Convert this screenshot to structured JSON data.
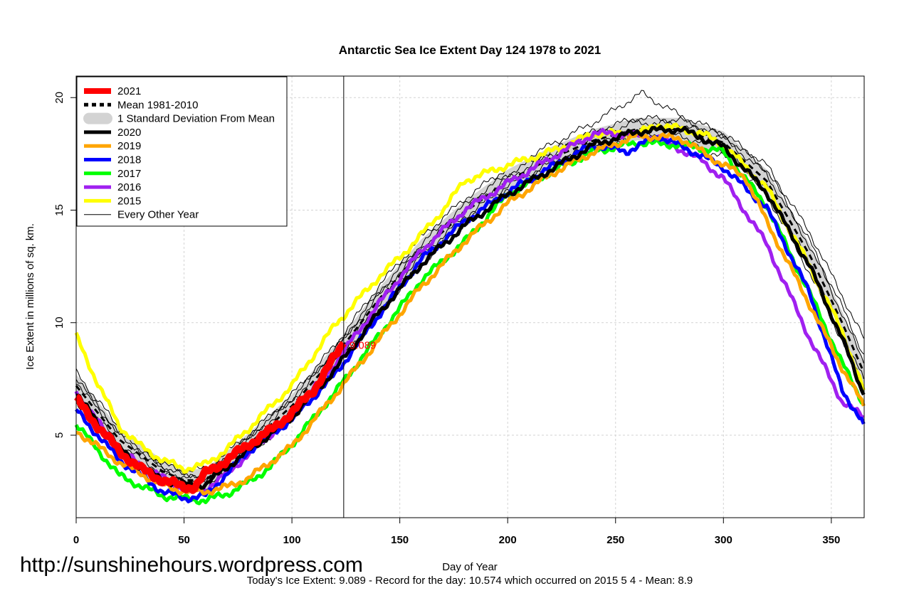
{
  "chart_data": {
    "type": "line",
    "title": "Antarctic Sea Ice Extent Day 124 1978 to 2021",
    "xlabel": "Day of Year",
    "ylabel": "Ice Extent in millions of sq. km.",
    "xlim": [
      0,
      365
    ],
    "ylim": [
      1.3,
      21
    ],
    "xticks": [
      0,
      50,
      100,
      150,
      200,
      250,
      300,
      350
    ],
    "yticks": [
      5,
      10,
      15,
      20
    ],
    "grid": true,
    "legend_position": "top-left",
    "marker_day": 124,
    "annotation": "9.089",
    "footer": "Today's Ice Extent: 9.089  - Record for the day: 10.574 which occurred on 2015 5 4  - Mean: 8.9",
    "watermark": "http://sunshinehours.wordpress.com",
    "legend": [
      {
        "label": "2021",
        "color": "#ff0000",
        "style": "thick"
      },
      {
        "label": "Mean 1981-2010",
        "color": "#000000",
        "style": "dashed"
      },
      {
        "label": "1 Standard Deviation From Mean",
        "color": "#d3d3d3",
        "style": "band"
      },
      {
        "label": "2020",
        "color": "#000000",
        "style": "thick"
      },
      {
        "label": "2019",
        "color": "#ffa500",
        "style": "thick"
      },
      {
        "label": "2018",
        "color": "#0000ff",
        "style": "thick"
      },
      {
        "label": "2017",
        "color": "#00ff00",
        "style": "thick"
      },
      {
        "label": "2016",
        "color": "#a020f0",
        "style": "thick"
      },
      {
        "label": "2015",
        "color": "#ffff00",
        "style": "thick"
      },
      {
        "label": "Every Other Year",
        "color": "#000000",
        "style": "thin"
      }
    ],
    "mean": {
      "x": [
        0,
        20,
        40,
        50,
        60,
        80,
        100,
        120,
        140,
        160,
        180,
        200,
        220,
        240,
        260,
        280,
        300,
        320,
        340,
        355,
        365
      ],
      "y": [
        7.2,
        4.8,
        3.4,
        3.0,
        3.0,
        4.6,
        6.3,
        8.5,
        11.0,
        13.2,
        14.9,
        16.3,
        17.3,
        18.1,
        18.6,
        18.6,
        18.0,
        16.3,
        13.0,
        10.0,
        7.8
      ],
      "sd": 0.5
    },
    "other_years": [
      {
        "x": [
          0,
          20,
          40,
          50,
          60,
          80,
          100,
          120,
          140,
          160,
          180,
          200,
          220,
          240,
          262,
          280,
          300,
          320,
          340,
          355,
          365
        ],
        "y": [
          7.8,
          5.3,
          3.7,
          3.4,
          3.5,
          5.0,
          6.8,
          9.0,
          11.6,
          13.8,
          15.5,
          16.9,
          17.9,
          18.9,
          20.2,
          19.2,
          18.4,
          17.0,
          14.0,
          11.2,
          9.3
        ]
      },
      {
        "x": [
          0,
          20,
          40,
          50,
          60,
          80,
          100,
          120,
          140,
          160,
          180,
          200,
          220,
          240,
          260,
          280,
          300,
          320,
          340,
          355,
          365
        ],
        "y": [
          6.5,
          4.3,
          3.1,
          2.8,
          2.7,
          4.1,
          5.8,
          8.0,
          10.4,
          12.6,
          14.4,
          15.8,
          16.9,
          17.8,
          18.3,
          18.0,
          17.4,
          15.7,
          12.2,
          9.2,
          7.2
        ]
      },
      {
        "x": [
          0,
          20,
          40,
          50,
          60,
          80,
          100,
          120,
          140,
          160,
          180,
          200,
          220,
          240,
          260,
          280,
          300,
          320,
          340,
          355,
          365
        ],
        "y": [
          7.5,
          5.0,
          3.6,
          3.2,
          3.3,
          4.9,
          6.6,
          8.8,
          11.3,
          13.5,
          15.2,
          16.6,
          17.6,
          18.5,
          19.1,
          19.0,
          18.3,
          16.8,
          13.6,
          10.7,
          8.6
        ]
      },
      {
        "x": [
          0,
          20,
          40,
          50,
          60,
          80,
          100,
          120,
          140,
          160,
          180,
          200,
          220,
          240,
          260,
          280,
          300,
          320,
          340,
          355,
          365
        ],
        "y": [
          6.9,
          4.6,
          3.3,
          2.9,
          2.9,
          4.4,
          6.1,
          8.3,
          10.8,
          13.0,
          14.7,
          16.1,
          17.1,
          17.9,
          18.4,
          18.3,
          17.7,
          16.0,
          12.6,
          9.6,
          7.5
        ]
      },
      {
        "x": [
          0,
          20,
          40,
          50,
          60,
          80,
          100,
          120,
          140,
          160,
          180,
          200,
          220,
          240,
          260,
          280,
          300,
          320,
          340,
          355,
          365
        ],
        "y": [
          7.4,
          5.1,
          3.5,
          3.1,
          3.1,
          4.8,
          6.5,
          8.7,
          11.2,
          13.3,
          15.0,
          16.4,
          17.5,
          18.3,
          18.9,
          18.8,
          18.2,
          16.6,
          13.4,
          10.4,
          8.2
        ]
      }
    ],
    "series": [
      {
        "name": "2015",
        "color": "#ffff00",
        "x": [
          0,
          10,
          20,
          30,
          40,
          50,
          60,
          70,
          80,
          100,
          120,
          140,
          150,
          160,
          170,
          180,
          200,
          220,
          240,
          260,
          270,
          290,
          300,
          320,
          340,
          355,
          365
        ],
        "y": [
          9.4,
          7.3,
          5.4,
          4.5,
          3.9,
          3.5,
          3.7,
          4.4,
          5.3,
          7.2,
          9.9,
          12.0,
          12.9,
          13.9,
          15.0,
          16.3,
          17.0,
          17.6,
          18.4,
          18.4,
          18.8,
          18.4,
          17.9,
          16.0,
          12.5,
          9.6,
          7.0
        ]
      },
      {
        "name": "2016",
        "color": "#a020f0",
        "x": [
          0,
          20,
          40,
          50,
          60,
          70,
          100,
          120,
          140,
          160,
          180,
          200,
          220,
          240,
          250,
          270,
          290,
          300,
          320,
          340,
          355,
          365
        ],
        "y": [
          6.9,
          4.3,
          3.1,
          2.6,
          2.6,
          3.3,
          5.9,
          8.2,
          10.8,
          13.2,
          15.0,
          16.2,
          17.3,
          18.4,
          18.4,
          18.2,
          17.2,
          16.4,
          13.5,
          9.3,
          6.5,
          5.8
        ]
      },
      {
        "name": "2017",
        "color": "#00ff00",
        "x": [
          0,
          20,
          40,
          60,
          70,
          80,
          90,
          100,
          120,
          140,
          160,
          180,
          200,
          220,
          240,
          260,
          280,
          300,
          320,
          340,
          355,
          365
        ],
        "y": [
          5.5,
          3.2,
          2.3,
          2.1,
          2.4,
          2.9,
          3.6,
          4.6,
          6.9,
          9.4,
          11.9,
          13.6,
          15.7,
          16.7,
          17.6,
          18.0,
          17.9,
          17.6,
          15.2,
          11.3,
          8.2,
          6.4
        ]
      },
      {
        "name": "2018",
        "color": "#0000ff",
        "x": [
          0,
          20,
          40,
          50,
          60,
          70,
          80,
          100,
          120,
          140,
          160,
          180,
          200,
          220,
          240,
          255,
          270,
          290,
          300,
          320,
          340,
          355,
          365
        ],
        "y": [
          6.1,
          3.9,
          2.5,
          2.2,
          2.3,
          3.3,
          4.3,
          5.7,
          7.7,
          10.3,
          12.8,
          14.5,
          15.8,
          16.9,
          17.9,
          17.6,
          18.3,
          17.4,
          16.9,
          15.1,
          11.3,
          7.0,
          5.5
        ]
      },
      {
        "name": "2019",
        "color": "#ffa500",
        "x": [
          0,
          20,
          40,
          50,
          60,
          70,
          80,
          100,
          120,
          140,
          160,
          180,
          200,
          220,
          240,
          260,
          280,
          300,
          310,
          320,
          340,
          355,
          365
        ],
        "y": [
          5.2,
          3.8,
          2.8,
          2.5,
          2.5,
          2.7,
          3.1,
          4.5,
          6.8,
          9.2,
          11.6,
          13.6,
          15.3,
          16.6,
          17.6,
          18.3,
          18.2,
          17.0,
          16.5,
          14.5,
          10.8,
          8.0,
          6.3
        ]
      },
      {
        "name": "2020",
        "color": "#000000",
        "x": [
          0,
          10,
          20,
          30,
          40,
          50,
          60,
          70,
          80,
          100,
          120,
          140,
          160,
          180,
          200,
          220,
          240,
          260,
          280,
          300,
          320,
          340,
          355,
          365
        ],
        "y": [
          6.9,
          5.5,
          4.4,
          3.6,
          3.0,
          2.8,
          2.8,
          3.6,
          4.3,
          5.8,
          7.9,
          10.4,
          12.6,
          14.3,
          15.7,
          16.8,
          17.9,
          18.5,
          18.6,
          17.8,
          15.8,
          12.5,
          9.3,
          6.8
        ]
      },
      {
        "name": "2021",
        "color": "#ff0000",
        "x": [
          0,
          10,
          20,
          30,
          40,
          50,
          55,
          60,
          70,
          80,
          90,
          100,
          110,
          118,
          124
        ],
        "y": [
          6.6,
          5.4,
          4.3,
          3.5,
          3.0,
          2.7,
          2.7,
          3.3,
          3.9,
          4.6,
          5.2,
          6.0,
          7.0,
          8.2,
          9.089
        ]
      }
    ]
  }
}
